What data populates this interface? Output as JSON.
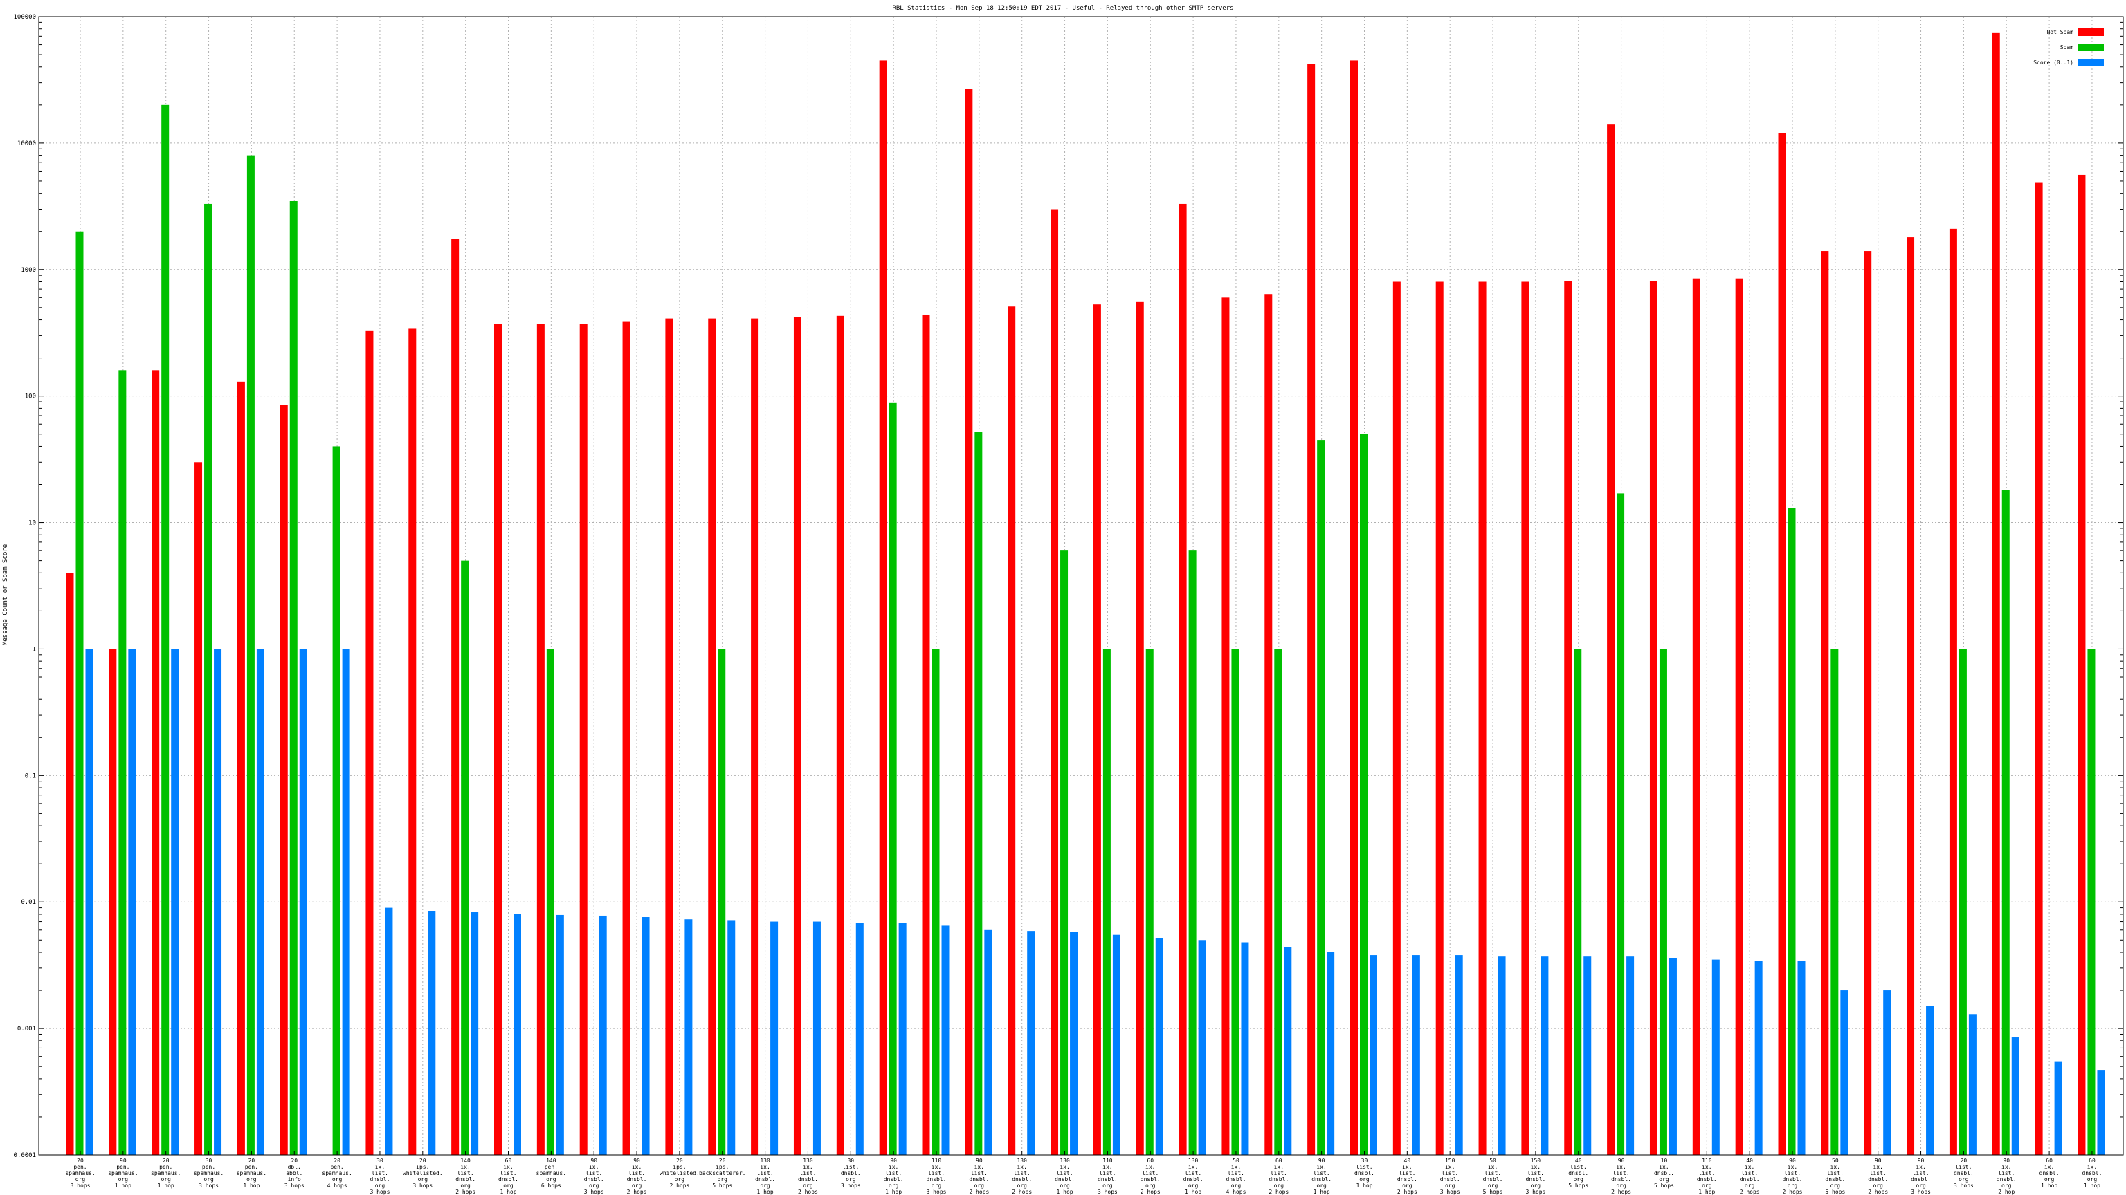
{
  "chart_data": {
    "type": "bar",
    "title": "RBL Statistics - Mon Sep 18 12:50:19 EDT 2017 - Useful - Relayed through other SMTP servers",
    "ylabel": "Message Count or Spam Score",
    "yscale": "log",
    "ylim": [
      0.0001,
      100000
    ],
    "yticks": [
      {
        "value": 0.0001,
        "label": "0.0001"
      },
      {
        "value": 0.001,
        "label": "0.001"
      },
      {
        "value": 0.01,
        "label": "0.01"
      },
      {
        "value": 0.1,
        "label": "0.1"
      },
      {
        "value": 1,
        "label": "1"
      },
      {
        "value": 10,
        "label": "10"
      },
      {
        "value": 100,
        "label": "100"
      },
      {
        "value": 1000,
        "label": "1000"
      },
      {
        "value": 10000,
        "label": "10000"
      },
      {
        "value": 100000,
        "label": "100000"
      }
    ],
    "grid": true,
    "legend": "top-right",
    "colors": {
      "not_spam": "#ff0000",
      "spam": "#00c000",
      "score": "#0080ff"
    },
    "categories": [
      [
        "20",
        "pen.",
        "spamhaus.",
        "org",
        "3 hops"
      ],
      [
        "90",
        "pen.",
        "spamhaus.",
        "org",
        "1 hop"
      ],
      [
        "20",
        "pen.",
        "spamhaus.",
        "org",
        "1 hop"
      ],
      [
        "30",
        "pen.",
        "spamhaus.",
        "org",
        "3 hops"
      ],
      [
        "20",
        "pen.",
        "spamhaus.",
        "org",
        "1 hop"
      ],
      [
        "20",
        "dbl.",
        "abbl.",
        "info",
        "3 hops"
      ],
      [
        "20",
        "pen.",
        "spamhaus.",
        "org",
        "4 hops"
      ],
      [
        "30",
        "ix.",
        "list.",
        "dnsbl.",
        "org",
        "3 hops"
      ],
      [
        "20",
        "ips.",
        "whitelisted.",
        "org",
        "3 hops"
      ],
      [
        "140",
        "ix.",
        "list.",
        "dnsbl.",
        "org",
        "2 hops"
      ],
      [
        "60",
        "ix.",
        "list.",
        "dnsbl.",
        "org",
        "1 hop"
      ],
      [
        "140",
        "pen.",
        "spamhaus.",
        "org",
        "6 hops"
      ],
      [
        "90",
        "ix.",
        "list.",
        "dnsbl.",
        "org",
        "3 hops"
      ],
      [
        "90",
        "ix.",
        "list.",
        "dnsbl.",
        "org",
        "2 hops"
      ],
      [
        "20",
        "ips.",
        "whitelisted.",
        "org",
        "2 hops"
      ],
      [
        "20",
        "ips.",
        "backscatterer.",
        "org",
        "5 hops"
      ],
      [
        "130",
        "ix.",
        "list.",
        "dnsbl.",
        "org",
        "1 hop"
      ],
      [
        "130",
        "ix.",
        "list.",
        "dnsbl.",
        "org",
        "2 hops"
      ],
      [
        "30",
        "list.",
        "dnsbl.",
        "org",
        "3 hops"
      ],
      [
        "90",
        "ix.",
        "list.",
        "dnsbl.",
        "org",
        "1 hop"
      ],
      [
        "110",
        "ix.",
        "list.",
        "dnsbl.",
        "org",
        "3 hops"
      ],
      [
        "90",
        "ix.",
        "list.",
        "dnsbl.",
        "org",
        "2 hops"
      ],
      [
        "130",
        "ix.",
        "list.",
        "dnsbl.",
        "org",
        "2 hops"
      ],
      [
        "130",
        "ix.",
        "list.",
        "dnsbl.",
        "org",
        "1 hop"
      ],
      [
        "110",
        "ix.",
        "list.",
        "dnsbl.",
        "org",
        "3 hops"
      ],
      [
        "60",
        "ix.",
        "list.",
        "dnsbl.",
        "org",
        "2 hops"
      ],
      [
        "130",
        "ix.",
        "list.",
        "dnsbl.",
        "org",
        "1 hop"
      ],
      [
        "50",
        "ix.",
        "list.",
        "dnsbl.",
        "org",
        "4 hops"
      ],
      [
        "60",
        "ix.",
        "list.",
        "dnsbl.",
        "org",
        "2 hops"
      ],
      [
        "90",
        "ix.",
        "list.",
        "dnsbl.",
        "org",
        "1 hop"
      ],
      [
        "30",
        "list.",
        "dnsbl.",
        "org",
        "1 hop"
      ],
      [
        "40",
        "ix.",
        "list.",
        "dnsbl.",
        "org",
        "2 hops"
      ],
      [
        "150",
        "ix.",
        "list.",
        "dnsbl.",
        "org",
        "3 hops"
      ],
      [
        "50",
        "ix.",
        "list.",
        "dnsbl.",
        "org",
        "5 hops"
      ],
      [
        "150",
        "ix.",
        "list.",
        "dnsbl.",
        "org",
        "3 hops"
      ],
      [
        "40",
        "list.",
        "dnsbl.",
        "org",
        "5 hops"
      ],
      [
        "90",
        "ix.",
        "list.",
        "dnsbl.",
        "org",
        "2 hops"
      ],
      [
        "10",
        "ix.",
        "dnsbl.",
        "org",
        "5 hops"
      ],
      [
        "110",
        "ix.",
        "list.",
        "dnsbl.",
        "org",
        "1 hop"
      ],
      [
        "40",
        "ix.",
        "list.",
        "dnsbl.",
        "org",
        "2 hops"
      ],
      [
        "90",
        "ix.",
        "list.",
        "dnsbl.",
        "org",
        "2 hops"
      ],
      [
        "50",
        "ix.",
        "list.",
        "dnsbl.",
        "org",
        "5 hops"
      ],
      [
        "90",
        "ix.",
        "list.",
        "dnsbl.",
        "org",
        "2 hops"
      ],
      [
        "90",
        "ix.",
        "list.",
        "dnsbl.",
        "org",
        "3 hops"
      ],
      [
        "20",
        "list.",
        "dnsbl.",
        "org",
        "3 hops"
      ],
      [
        "90",
        "ix.",
        "list.",
        "dnsbl.",
        "org",
        "2 hop"
      ],
      [
        "60",
        "ix.",
        "dnsbl.",
        "org",
        "1 hop"
      ],
      [
        "60",
        "ix.",
        "dnsbl.",
        "org",
        "1 hop"
      ]
    ],
    "series": [
      {
        "name": "Not Spam",
        "values": [
          4,
          1,
          160,
          30,
          130,
          85,
          null,
          330,
          340,
          1750,
          370,
          370,
          370,
          390,
          410,
          410,
          410,
          420,
          430,
          45000,
          440,
          27000,
          510,
          3000,
          530,
          560,
          3300,
          600,
          640,
          42000,
          45000,
          800,
          800,
          800,
          800,
          810,
          14000,
          810,
          850,
          850,
          12000,
          1400,
          1400,
          1800,
          2100,
          75000,
          4900,
          5600
        ]
      },
      {
        "name": "Spam",
        "values": [
          2000,
          160,
          20000,
          3300,
          8000,
          3500,
          40,
          null,
          null,
          5,
          null,
          1,
          null,
          null,
          null,
          1,
          null,
          null,
          null,
          88,
          1,
          52,
          null,
          6,
          1,
          1,
          6,
          1,
          1,
          45,
          50,
          null,
          null,
          null,
          null,
          1,
          17,
          1,
          null,
          null,
          13,
          1,
          null,
          null,
          1,
          18,
          null,
          1
        ]
      },
      {
        "name": "Score (0..1)",
        "values": [
          1,
          1,
          1,
          1,
          1,
          1,
          1,
          0.009,
          0.0085,
          0.0083,
          0.008,
          0.0079,
          0.0078,
          0.0076,
          0.0073,
          0.0071,
          0.007,
          0.007,
          0.0068,
          0.0068,
          0.0065,
          0.006,
          0.0059,
          0.0058,
          0.0055,
          0.0052,
          0.005,
          0.0048,
          0.0044,
          0.004,
          0.0038,
          0.0038,
          0.0038,
          0.0037,
          0.0037,
          0.0037,
          0.0037,
          0.0036,
          0.0035,
          0.0034,
          0.0034,
          0.002,
          0.002,
          0.0015,
          0.0013,
          0.00085,
          0.00055,
          0.00047
        ]
      }
    ]
  }
}
